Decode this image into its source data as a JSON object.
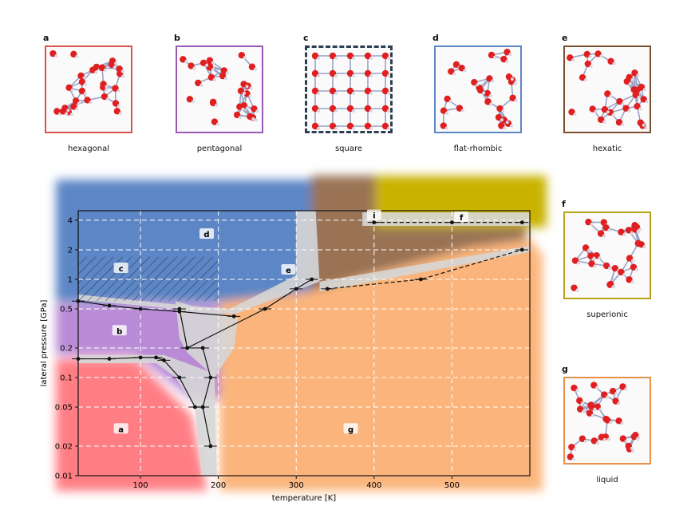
{
  "panels": [
    {
      "letter": "a",
      "caption": "hexagonal",
      "color": "#d9534f"
    },
    {
      "letter": "b",
      "caption": "pentagonal",
      "color": "#9b59b6"
    },
    {
      "letter": "c",
      "caption": "square",
      "color": "#2c3e50"
    },
    {
      "letter": "d",
      "caption": "flat-rhombic",
      "color": "#5b86c5"
    },
    {
      "letter": "e",
      "caption": "hexatic",
      "color": "#7a5030"
    },
    {
      "letter": "f",
      "caption": "superionic",
      "color": "#b8a21c"
    },
    {
      "letter": "g",
      "caption": "liquid",
      "color": "#e8914a"
    }
  ],
  "chart_data": {
    "type": "scatter",
    "xlabel": "temperature [K]",
    "ylabel": "lateral pressure [GPa]",
    "xlim": [
      20,
      600
    ],
    "ylim": [
      0.01,
      5
    ],
    "yscale": "log",
    "grid": true,
    "x_ticks": [
      100,
      200,
      300,
      400,
      500
    ],
    "y_ticks": [
      {
        "v": 0.01,
        "label": "0.01"
      },
      {
        "v": 0.02,
        "label": "0.02"
      },
      {
        "v": 0.05,
        "label": "0.05"
      },
      {
        "v": 0.1,
        "label": "0.1"
      },
      {
        "v": 0.2,
        "label": "0.2"
      },
      {
        "v": 0.5,
        "label": "0.5"
      },
      {
        "v": 1,
        "label": "1"
      },
      {
        "v": 2,
        "label": "2"
      },
      {
        "v": 4,
        "label": "4"
      }
    ],
    "region_labels": [
      {
        "label": "a",
        "x": 75,
        "y": 0.03
      },
      {
        "label": "b",
        "x": 73,
        "y": 0.3
      },
      {
        "label": "c",
        "x": 75,
        "y": 1.3
      },
      {
        "label": "d",
        "x": 185,
        "y": 2.9
      },
      {
        "label": "e",
        "x": 290,
        "y": 1.25
      },
      {
        "label": "f",
        "x": 512,
        "y": 4.3
      },
      {
        "label": "g",
        "x": 370,
        "y": 0.03
      },
      {
        "label": "i",
        "x": 400,
        "y": 4.5
      }
    ],
    "series": [
      {
        "values": [
          [
            20,
            0.6
          ],
          [
            60,
            0.54
          ],
          [
            100,
            0.5
          ],
          [
            150,
            0.47
          ],
          [
            220,
            0.42
          ]
        ]
      },
      {
        "values": [
          [
            20,
            0.155
          ],
          [
            60,
            0.155
          ],
          [
            100,
            0.16
          ],
          [
            120,
            0.16
          ],
          [
            130,
            0.15
          ],
          [
            150,
            0.1
          ],
          [
            170,
            0.05
          ],
          [
            180,
            0.05
          ],
          [
            190,
            0.02
          ]
        ]
      },
      {
        "values": [
          [
            150,
            0.5
          ],
          [
            160,
            0.2
          ],
          [
            180,
            0.2
          ],
          [
            190,
            0.1
          ],
          [
            180,
            0.05
          ]
        ]
      },
      {
        "values": [
          [
            160,
            0.2
          ],
          [
            260,
            0.5
          ],
          [
            300,
            0.8
          ],
          [
            320,
            1.0
          ]
        ]
      },
      {
        "values": [
          [
            340,
            0.8
          ],
          [
            460,
            1.0
          ],
          [
            590,
            2.0
          ]
        ]
      },
      {
        "values": [
          [
            400,
            3.8
          ],
          [
            500,
            3.8
          ],
          [
            590,
            3.8
          ]
        ]
      }
    ]
  }
}
